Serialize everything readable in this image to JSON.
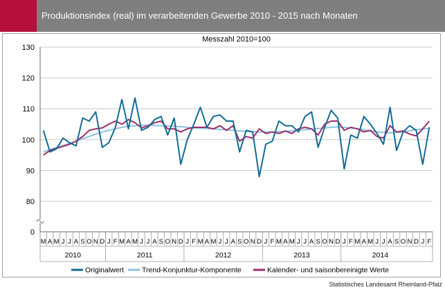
{
  "header": {
    "title": "Produktionsindex (real) im verarbeitenden Gewerbe 2010 - 2015 nach Monaten",
    "accent_color": "#b5103c",
    "bar_color": "#7f7f7f"
  },
  "source": "Statistisches Landesamt Rheinland-Pfalz",
  "chart_data": {
    "type": "line",
    "subtitle": "Messzahl 2010=100",
    "y_ticks": [
      0,
      80,
      90,
      100,
      110,
      120,
      130
    ],
    "ylim": [
      0,
      130
    ],
    "y_axis_break": true,
    "grid": true,
    "months": [
      "M",
      "A",
      "M",
      "J",
      "J",
      "A",
      "S",
      "O",
      "N",
      "D",
      "J",
      "F",
      "M",
      "A",
      "M",
      "J",
      "J",
      "A",
      "S",
      "O",
      "N",
      "D",
      "J",
      "F",
      "M",
      "A",
      "M",
      "J",
      "J",
      "A",
      "S",
      "O",
      "N",
      "D",
      "J",
      "F",
      "M",
      "A",
      "M",
      "J",
      "J",
      "A",
      "S",
      "O",
      "N",
      "D",
      "J",
      "F",
      "M",
      "A",
      "M",
      "J",
      "J",
      "A",
      "S",
      "O",
      "N",
      "D",
      "J",
      "F"
    ],
    "years": [
      {
        "label": "2010",
        "months": 10
      },
      {
        "label": "2011",
        "months": 12
      },
      {
        "label": "2012",
        "months": 12
      },
      {
        "label": "2013",
        "months": 12
      },
      {
        "label": "2014",
        "months": 12
      }
    ],
    "legend_position": "bottom",
    "series": [
      {
        "name": "Originalwert",
        "color": "#136b94",
        "values": [
          103,
          96,
          97,
          100.5,
          99,
          98,
          107,
          106,
          109,
          97.5,
          99,
          104,
          113,
          103.5,
          113.5,
          103,
          104,
          106.5,
          107.5,
          101.5,
          107,
          92,
          100,
          105,
          110.5,
          104,
          107.5,
          108,
          106,
          106,
          96,
          103,
          102.5,
          88,
          98.5,
          99.5,
          106,
          104.5,
          104.5,
          102.5,
          107.5,
          109,
          97.5,
          104,
          109.5,
          107,
          90.5,
          101.5,
          100.5,
          107.5,
          105,
          102,
          98.5,
          110.5,
          96.5,
          102.5,
          104.5,
          103,
          92,
          104
        ]
      },
      {
        "name": "Trend-Konjunktur-Komponente",
        "color": "#8dc2dc",
        "values": [
          96,
          96.8,
          97.5,
          98.1,
          98.8,
          99.5,
          100.3,
          101,
          101.8,
          102.5,
          103,
          103.5,
          104,
          104.3,
          104.5,
          104.6,
          104.7,
          104.6,
          104.5,
          104.4,
          104.3,
          104.2,
          104,
          103.8,
          103.7,
          103.6,
          103.5,
          103.3,
          103.2,
          103,
          102.8,
          102.7,
          102.6,
          102.5,
          102.5,
          102.5,
          102.6,
          102.7,
          102.8,
          103,
          103.2,
          103.4,
          103.6,
          103.8,
          104,
          104.1,
          104,
          103.8,
          103.5,
          103.2,
          102.8,
          102.5,
          102.3,
          102.2,
          102.3,
          102.5,
          102.9,
          103.2,
          103.5,
          103.7
        ]
      },
      {
        "name": "Kalender- und saisonbereinigte Werte",
        "color": "#9b2f6b",
        "values": [
          95,
          96.5,
          97.2,
          97.8,
          98.5,
          99.5,
          101,
          103,
          103.5,
          103.8,
          105,
          106,
          105,
          106.5,
          105.5,
          103.8,
          104.5,
          105.5,
          106,
          103.5,
          103.5,
          102.5,
          103.5,
          104,
          104,
          104,
          103.5,
          104.5,
          103,
          104.5,
          99.5,
          101,
          100.5,
          103.5,
          102,
          102.5,
          102,
          102.8,
          102,
          103.5,
          104,
          103.5,
          101.5,
          105,
          106,
          106,
          103,
          104,
          103.5,
          102.5,
          103,
          101,
          100.5,
          104.5,
          102.5,
          102.8,
          101.8,
          101.2,
          103.5,
          106
        ]
      }
    ]
  }
}
